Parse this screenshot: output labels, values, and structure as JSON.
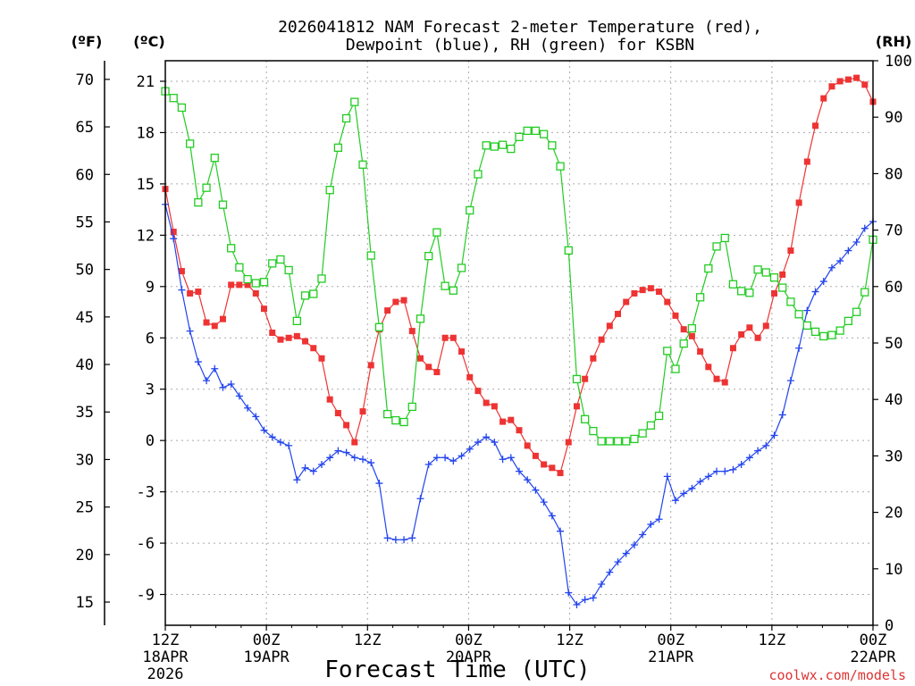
{
  "chart_data": {
    "type": "line",
    "title_line1": "2026041812 NAM Forecast 2-meter Temperature (red),",
    "title_line2": "Dewpoint (blue), RH (green) for KSBN",
    "unit_f": "(ºF)",
    "unit_c": "(ºC)",
    "unit_rh": "(RH)",
    "xlabel": "Forecast Time (UTC)",
    "credit": "coolwx.com/models",
    "x_range_hours": [
      0,
      84
    ],
    "x_ticks": [
      {
        "hour": 0,
        "l1": "12Z",
        "l2": "18APR",
        "l3": "2026"
      },
      {
        "hour": 12,
        "l1": "00Z",
        "l2": "19APR",
        "l3": ""
      },
      {
        "hour": 24,
        "l1": "12Z",
        "l2": "",
        "l3": ""
      },
      {
        "hour": 36,
        "l1": "00Z",
        "l2": "20APR",
        "l3": ""
      },
      {
        "hour": 48,
        "l1": "12Z",
        "l2": "",
        "l3": ""
      },
      {
        "hour": 60,
        "l1": "00Z",
        "l2": "21APR",
        "l3": ""
      },
      {
        "hour": 72,
        "l1": "12Z",
        "l2": "",
        "l3": ""
      },
      {
        "hour": 84,
        "l1": "00Z",
        "l2": "22APR",
        "l3": ""
      }
    ],
    "c_range": [
      -10.8,
      22.2
    ],
    "c_ticks": [
      "21",
      "18",
      "15",
      "12",
      "9",
      "6",
      "3",
      "0",
      "-3",
      "-6",
      "-9"
    ],
    "f_ticks": [
      "70",
      "65",
      "60",
      "55",
      "50",
      "45",
      "40",
      "35",
      "30",
      "25",
      "20",
      "15"
    ],
    "rh_range": [
      0,
      100
    ],
    "rh_ticks": [
      "100",
      "90",
      "80",
      "70",
      "60",
      "50",
      "40",
      "30",
      "20",
      "10",
      "0"
    ],
    "grid": true,
    "series": [
      {
        "name": "Temperature (°C)",
        "color": "#ee3333",
        "marker": "filled-square",
        "values": [
          14.7,
          12.2,
          9.9,
          8.6,
          8.7,
          6.9,
          6.7,
          7.1,
          9.1,
          9.1,
          9.1,
          8.6,
          7.7,
          6.3,
          5.9,
          6.0,
          6.1,
          5.8,
          5.4,
          4.8,
          2.4,
          1.6,
          0.9,
          -0.1,
          1.7,
          4.4,
          6.5,
          7.6,
          8.1,
          8.2,
          6.4,
          4.8,
          4.3,
          4.0,
          6.0,
          6.0,
          5.2,
          3.7,
          2.9,
          2.2,
          2.0,
          1.1,
          1.2,
          0.6,
          -0.3,
          -0.9,
          -1.4,
          -1.6,
          -1.9,
          -0.1,
          2.0,
          3.6,
          4.8,
          5.9,
          6.7,
          7.4,
          8.1,
          8.6,
          8.8,
          8.9,
          8.7,
          8.1,
          7.3,
          6.5,
          6.1,
          5.2,
          4.3,
          3.6,
          3.4,
          5.4,
          6.2,
          6.6,
          6.0,
          6.7,
          8.6,
          9.7,
          11.1,
          13.9,
          16.3,
          18.4,
          20.0,
          20.7,
          21.0,
          21.1,
          21.2,
          20.8,
          19.8
        ]
      },
      {
        "name": "Dewpoint (°C)",
        "color": "#2244ee",
        "marker": "plus",
        "values": [
          13.8,
          11.8,
          8.8,
          6.4,
          4.6,
          3.5,
          4.2,
          3.1,
          3.3,
          2.6,
          1.9,
          1.4,
          0.6,
          0.2,
          -0.1,
          -0.3,
          -2.3,
          -1.6,
          -1.8,
          -1.4,
          -1.0,
          -0.6,
          -0.7,
          -1.0,
          -1.1,
          -1.3,
          -2.5,
          -5.7,
          -5.8,
          -5.8,
          -5.7,
          -3.4,
          -1.4,
          -1.0,
          -1.0,
          -1.2,
          -0.9,
          -0.5,
          -0.1,
          0.2,
          -0.1,
          -1.1,
          -1.0,
          -1.8,
          -2.3,
          -2.9,
          -3.6,
          -4.4,
          -5.3,
          -8.9,
          -9.6,
          -9.3,
          -9.2,
          -8.4,
          -7.7,
          -7.1,
          -6.6,
          -6.1,
          -5.5,
          -4.9,
          -4.6,
          -2.1,
          -3.5,
          -3.1,
          -2.8,
          -2.4,
          -2.1,
          -1.8,
          -1.8,
          -1.7,
          -1.4,
          -1.0,
          -0.6,
          -0.3,
          0.3,
          1.5,
          3.5,
          5.4,
          7.6,
          8.7,
          9.3,
          10.1,
          10.5,
          11.1,
          11.6,
          12.4,
          12.8
        ]
      },
      {
        "name": "RH (%)",
        "color": "#22cc22",
        "marker": "open-square",
        "values": [
          94.6,
          93.4,
          91.7,
          85.3,
          74.9,
          77.5,
          82.8,
          74.5,
          66.8,
          63.4,
          61.3,
          60.6,
          60.8,
          64.1,
          64.8,
          62.9,
          53.9,
          58.4,
          58.7,
          61.4,
          77.1,
          84.6,
          89.8,
          92.7,
          81.6,
          65.5,
          52.8,
          37.4,
          36.3,
          36.0,
          38.7,
          54.3,
          65.4,
          69.6,
          60.1,
          59.3,
          63.3,
          73.5,
          79.9,
          85.0,
          84.8,
          85.1,
          84.4,
          86.5,
          87.6,
          87.6,
          87.0,
          85.0,
          81.3,
          66.4,
          43.6,
          36.5,
          34.4,
          32.6,
          32.6,
          32.6,
          32.6,
          33.0,
          34.0,
          35.4,
          37.1,
          48.6,
          45.4,
          49.9,
          52.6,
          58.1,
          63.2,
          67.1,
          68.6,
          60.4,
          59.2,
          58.9,
          63.0,
          62.5,
          61.6,
          59.8,
          57.3,
          55.1,
          53.1,
          52.0,
          51.2,
          51.4,
          52.2,
          53.9,
          55.5,
          59.0,
          68.3
        ]
      }
    ]
  }
}
